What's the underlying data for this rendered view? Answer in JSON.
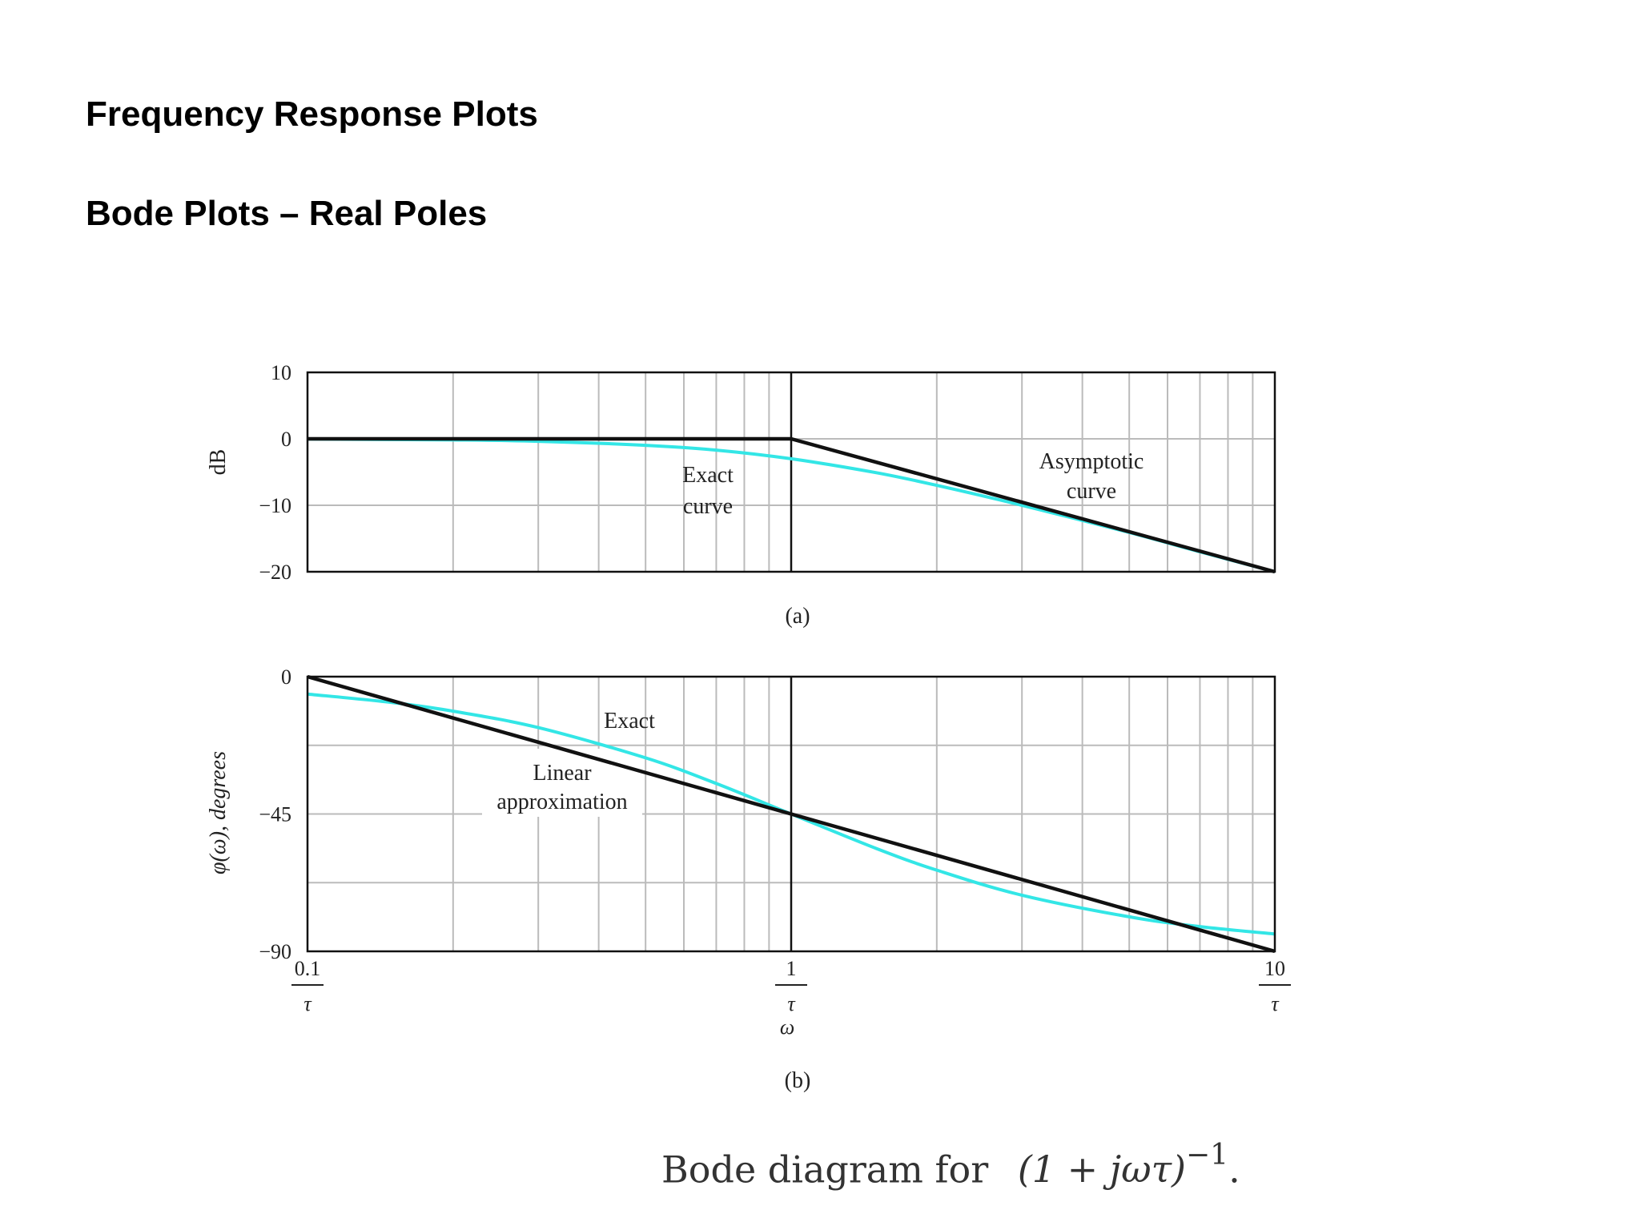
{
  "page": {
    "title": "Frequency Response Plots",
    "subtitle": "Bode Plots – Real Poles",
    "caption_prefix": "Bode diagram for",
    "caption_expr": "(1 + jωτ)",
    "caption_exp": "−1",
    "caption_suffix": "."
  },
  "colors": {
    "exact": "#33e6e6",
    "asymptote": "#111111",
    "grid": "#bbbbbb",
    "axis": "#111111"
  },
  "chart_data": [
    {
      "type": "line",
      "panel_label": "(a)",
      "ylabel": "dB",
      "x_scale": "log",
      "xlim": [
        0.1,
        10
      ],
      "ylim": [
        -20,
        10
      ],
      "yticks": [
        10,
        0,
        -10,
        -20
      ],
      "ytick_labels": [
        "10",
        "0",
        "−10",
        "−20"
      ],
      "grid": true,
      "series": [
        {
          "role": "exact",
          "color": "#33e6e6",
          "x": [
            0.1,
            0.2,
            0.3,
            0.5,
            0.7,
            1,
            1.5,
            2,
            3,
            5,
            7,
            10
          ],
          "y": [
            -0.04,
            -0.17,
            -0.37,
            -0.97,
            -1.7,
            -3.0,
            -5.1,
            -7.0,
            -10.0,
            -14.1,
            -17.0,
            -20.0
          ]
        },
        {
          "role": "asymptote",
          "color": "#111111",
          "x": [
            0.1,
            1,
            10
          ],
          "y": [
            0,
            0,
            -20
          ]
        }
      ],
      "annotations": [
        {
          "text_lines": [
            "Exact",
            "curve"
          ],
          "color": "#33e6e6"
        },
        {
          "text_lines": [
            "Asymptotic",
            "curve"
          ],
          "color": "#222222"
        }
      ]
    },
    {
      "type": "line",
      "panel_label": "(b)",
      "ylabel": "φ(ω), degrees",
      "xlabel": "ω",
      "x_scale": "log",
      "xlim": [
        0.1,
        10
      ],
      "ylim": [
        -90,
        0
      ],
      "yticks": [
        0,
        -45,
        -90
      ],
      "ytick_labels": [
        "0",
        "−45",
        "−90"
      ],
      "xtick_labels": [
        {
          "num": "0.1",
          "den": "τ"
        },
        {
          "num": "1",
          "den": "τ"
        },
        {
          "num": "10",
          "den": "τ"
        }
      ],
      "grid": true,
      "series": [
        {
          "role": "exact",
          "color": "#33e6e6",
          "x": [
            0.1,
            0.15,
            0.2,
            0.3,
            0.5,
            0.7,
            1,
            1.5,
            2,
            3,
            5,
            7,
            10
          ],
          "y": [
            -5.7,
            -8.5,
            -11.3,
            -16.7,
            -26.6,
            -35.0,
            -45.0,
            -56.3,
            -63.4,
            -71.6,
            -78.7,
            -81.9,
            -84.3
          ]
        },
        {
          "role": "linear_approximation",
          "color": "#111111",
          "x": [
            0.1,
            1,
            10
          ],
          "y": [
            0,
            -45,
            -90
          ]
        }
      ],
      "annotations": [
        {
          "text_lines": [
            "Exact"
          ],
          "color": "#33e6e6"
        },
        {
          "text_lines": [
            "Linear",
            "approximation"
          ],
          "color": "#222222"
        }
      ]
    }
  ]
}
